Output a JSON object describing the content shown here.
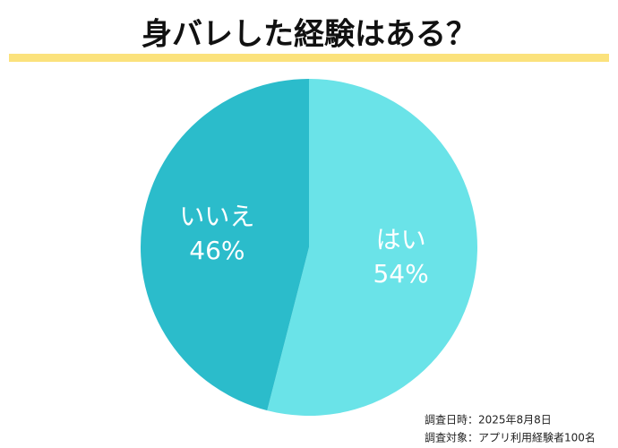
{
  "chart_data": {
    "type": "pie",
    "title": "身バレした経験はある？",
    "categories": [
      "はい",
      "いいえ"
    ],
    "values": [
      54,
      46
    ],
    "value_labels": [
      "54%",
      "46%"
    ],
    "colors": [
      "#6ae3e8",
      "#2bbccb"
    ],
    "footnotes": [
      "調査日時：2025年8月8日",
      "調査対象：アプリ利用経験者100名"
    ]
  }
}
